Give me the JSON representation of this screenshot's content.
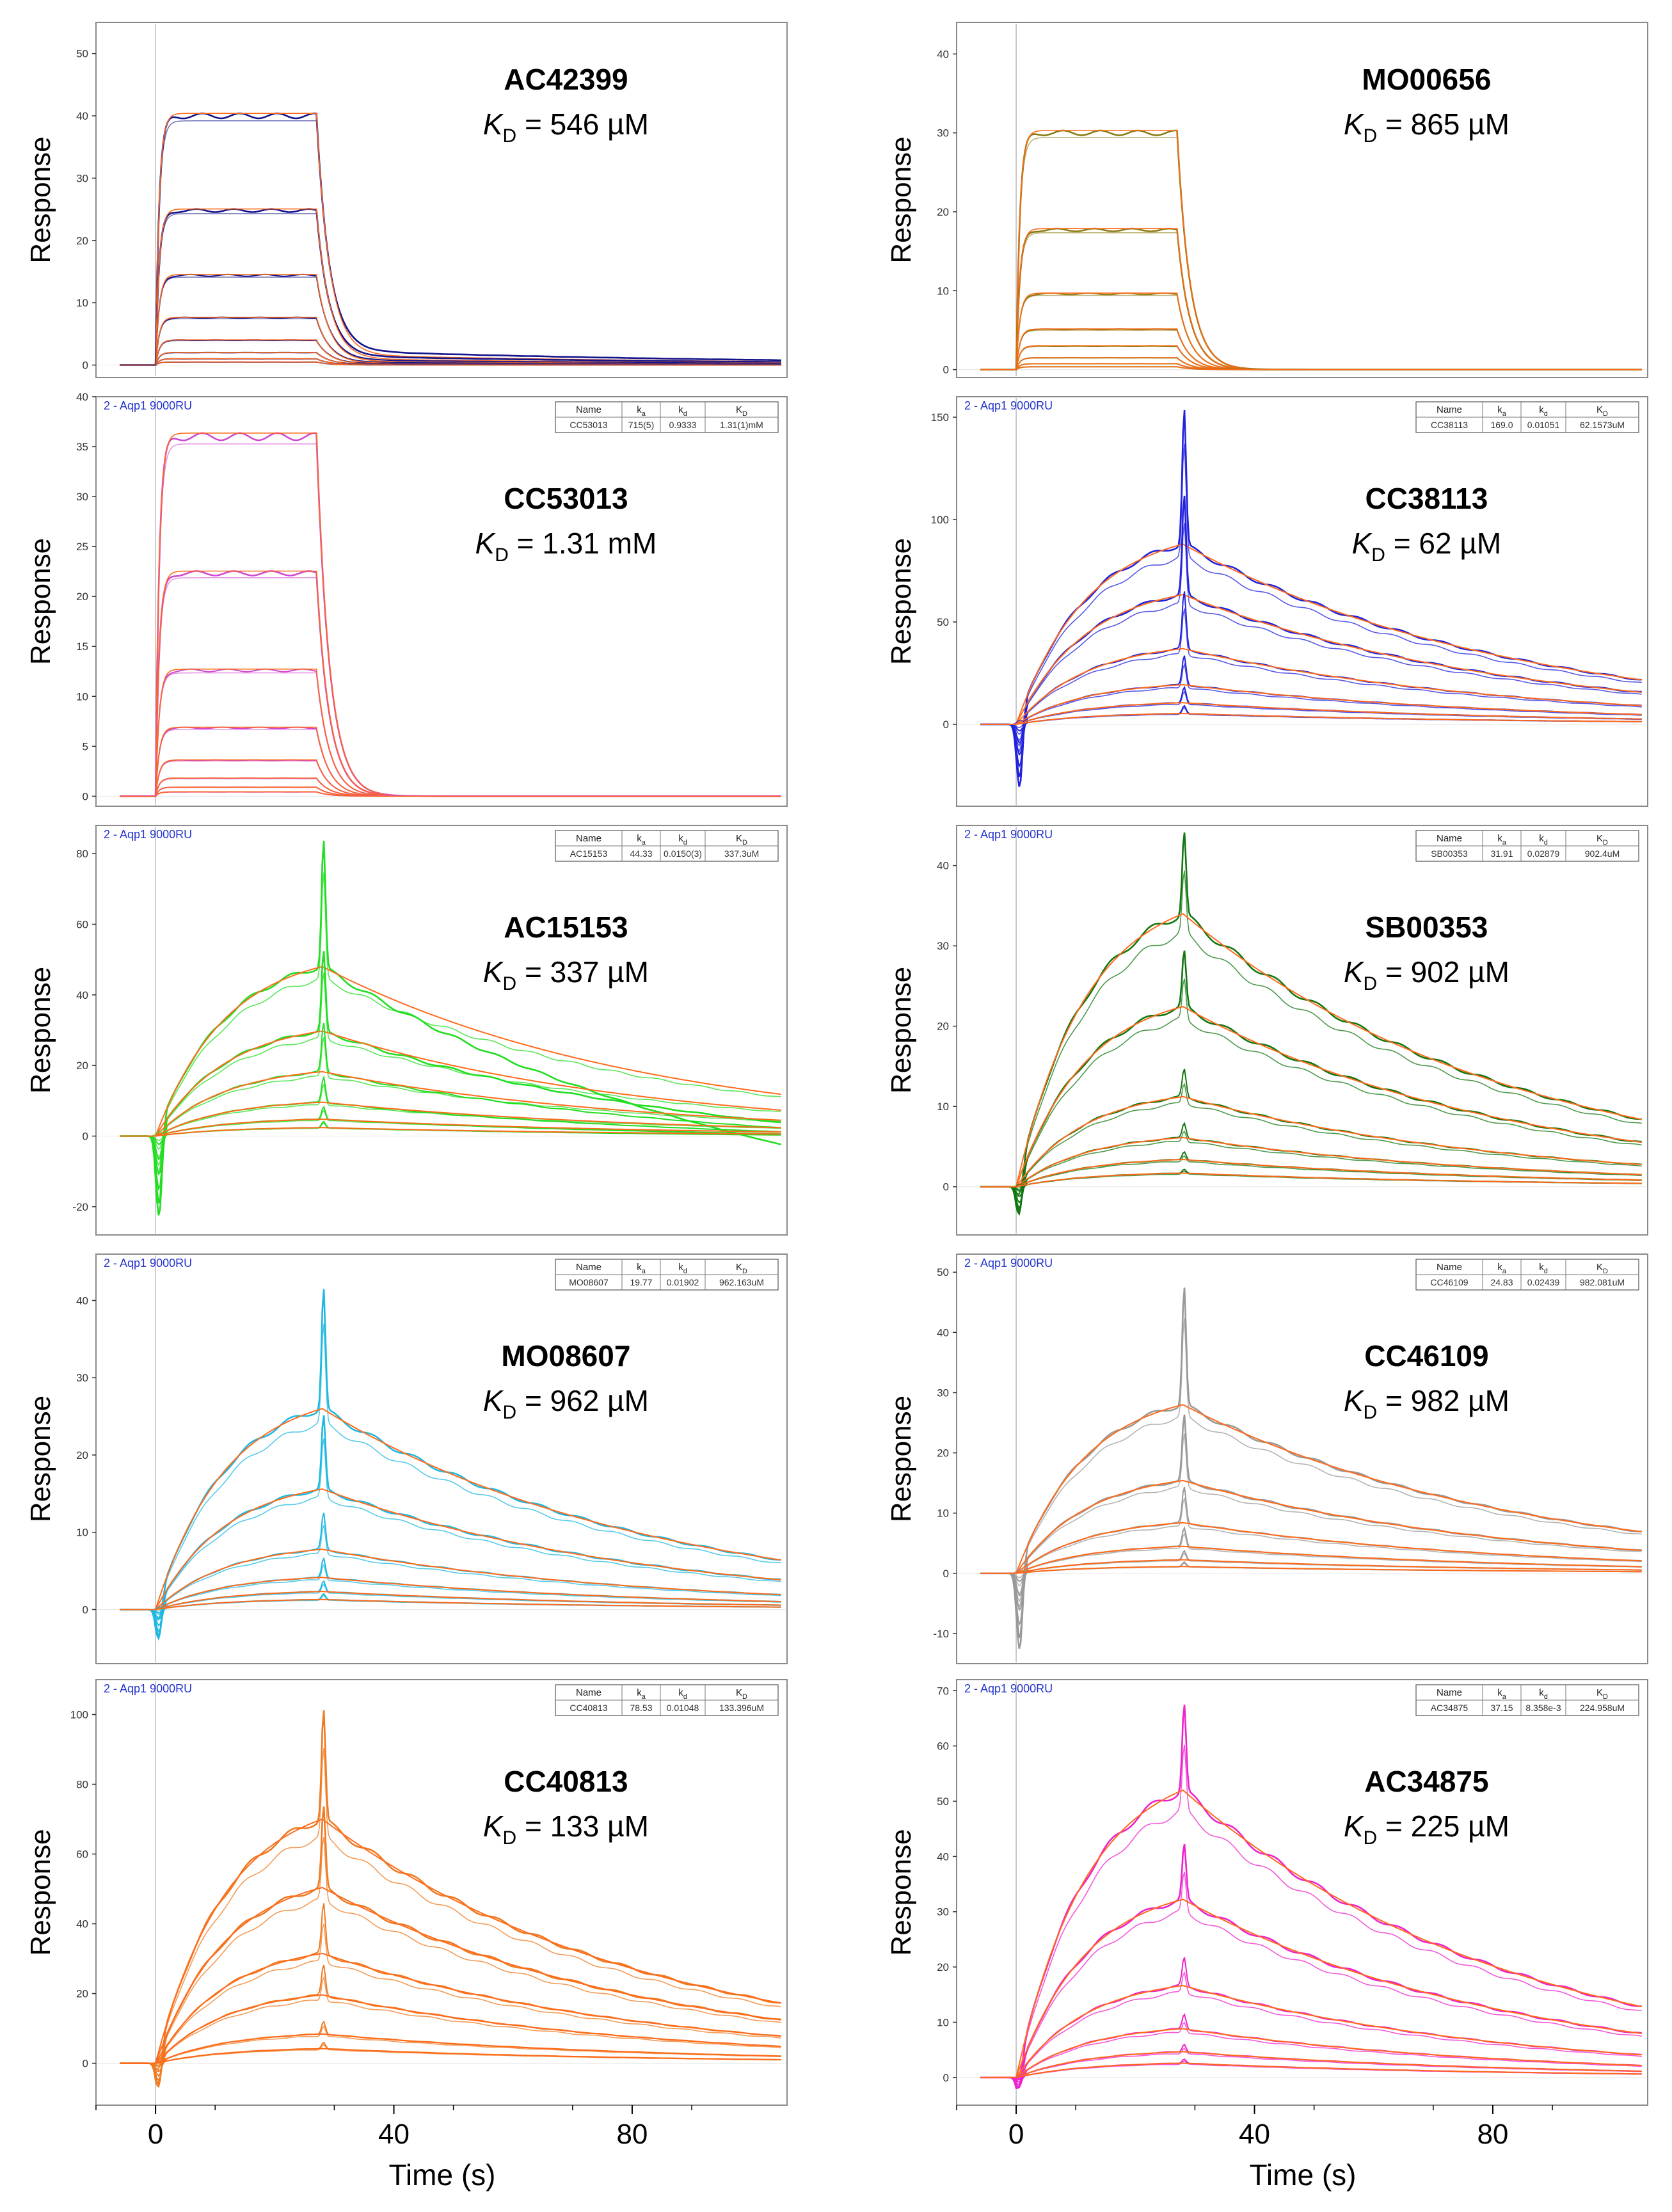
{
  "colors": {
    "fit": "#ff6a1a",
    "frame": "#8a8a8a",
    "axis_text": "#333333",
    "header_text": "#2233cc",
    "ref_line": "#bbbbbb"
  },
  "common": {
    "ylabel": "Response",
    "xlabel": "Time (s)",
    "x_ticks": [
      "0",
      "40",
      "80"
    ],
    "x_tick_values": [
      0,
      40,
      80
    ],
    "x_range": [
      -10,
      106
    ],
    "kd_symbol": "K",
    "kd_subscript": "D",
    "table_headers": [
      "Name",
      "k",
      "k",
      "K"
    ],
    "table_header_subs": [
      "",
      "a",
      "d",
      "D"
    ]
  },
  "chart_data": [
    {
      "type": "line",
      "compound": "AC42399",
      "kd_text": " = 546 µM",
      "profile": "fast",
      "ymax": 40,
      "ylim": [
        -2,
        55
      ],
      "yticks": [
        0,
        10,
        20,
        30,
        40,
        50
      ],
      "color": "#14148c",
      "levels": [
        1,
        0.62,
        0.36,
        0.19,
        0.1,
        0.05,
        0.025,
        0.012
      ],
      "dissociation_tail": 0.06,
      "header": "",
      "table": null
    },
    {
      "type": "line",
      "compound": "MO00656",
      "kd_text": " = 865 µM",
      "profile": "fast",
      "ymax": 30,
      "ylim": [
        -1,
        44
      ],
      "yticks": [
        0,
        10,
        20,
        30,
        40
      ],
      "color": "#8a7a10",
      "levels": [
        1,
        0.59,
        0.32,
        0.17,
        0.1,
        0.05,
        0.025,
        0.012
      ],
      "dissociation_tail": 0.0,
      "header": "",
      "table": null
    },
    {
      "type": "line",
      "compound": "CC53013",
      "kd_text": " = 1.31 mM",
      "profile": "fast",
      "ymax": 36,
      "ylim": [
        -1,
        40
      ],
      "yticks": [
        0,
        5,
        10,
        15,
        20,
        25,
        30,
        35,
        40
      ],
      "color": "#d048d0",
      "levels": [
        1,
        0.62,
        0.35,
        0.19,
        0.1,
        0.05,
        0.025,
        0.012
      ],
      "dissociation_tail": 0.0,
      "header": "2 - Aqp1 9000RU",
      "table": [
        "CC53013",
        "715(5)",
        "0.9333",
        "1.31(1)mM"
      ]
    },
    {
      "type": "line",
      "compound": "CC38113",
      "kd_text": " = 62 µM",
      "profile": "slow",
      "ymax": 88,
      "spike": 1.75,
      "neg": -35,
      "ylim": [
        -40,
        160
      ],
      "yticks": [
        0,
        50,
        100,
        150
      ],
      "color": "#2222dd",
      "levels": [
        1,
        0.72,
        0.42,
        0.22,
        0.12,
        0.06
      ],
      "dissociation_tail": 0.0,
      "header": "2 - Aqp1 9000RU",
      "table": [
        "CC38113",
        "169.0",
        "0.01051",
        "62.1573uM"
      ]
    },
    {
      "type": "line",
      "compound": "AC15153",
      "kd_text": " = 337 µM",
      "profile": "slow",
      "ymax": 48,
      "spike": 1.75,
      "neg": -25,
      "ylim": [
        -28,
        88
      ],
      "yticks": [
        -20,
        0,
        20,
        40,
        60,
        80
      ],
      "color": "#22dd22",
      "levels": [
        1,
        0.62,
        0.38,
        0.2,
        0.1,
        0.05
      ],
      "dissociation_tail": 0.3,
      "header": "2 - Aqp1 9000RU",
      "table": [
        "AC15153",
        "44.33",
        "0.0150(3)",
        "337.3uM"
      ]
    },
    {
      "type": "line",
      "compound": "SB00353",
      "kd_text": " = 902 µM",
      "profile": "slow",
      "ymax": 34,
      "spike": 1.3,
      "neg": -5,
      "ylim": [
        -6,
        45
      ],
      "yticks": [
        0,
        10,
        20,
        30,
        40
      ],
      "color": "#117711",
      "levels": [
        1,
        0.66,
        0.33,
        0.18,
        0.1,
        0.05
      ],
      "dissociation_tail": 0.0,
      "header": "2 - Aqp1 9000RU",
      "table": [
        "SB00353",
        "31.91",
        "0.02879",
        "902.4uM"
      ]
    },
    {
      "type": "line",
      "compound": "MO08607",
      "kd_text": " = 962 µM",
      "profile": "slow",
      "ymax": 26,
      "spike": 1.6,
      "neg": -5,
      "ylim": [
        -7,
        46
      ],
      "yticks": [
        0,
        10,
        20,
        30,
        40
      ],
      "color": "#1fb8e0",
      "levels": [
        1,
        0.6,
        0.3,
        0.16,
        0.09,
        0.05
      ],
      "dissociation_tail": 0.0,
      "header": "2 - Aqp1 9000RU",
      "table": [
        "MO08607",
        "19.77",
        "0.01902",
        "962.163uM"
      ]
    },
    {
      "type": "line",
      "compound": "CC46109",
      "kd_text": " = 982 µM",
      "profile": "slow",
      "ymax": 28,
      "spike": 1.7,
      "neg": -14,
      "ylim": [
        -15,
        53
      ],
      "yticks": [
        -10,
        0,
        10,
        20,
        30,
        40,
        50
      ],
      "color": "#999999",
      "levels": [
        1,
        0.55,
        0.3,
        0.16,
        0.08,
        0.04
      ],
      "dissociation_tail": 0.0,
      "header": "2 - Aqp1 9000RU",
      "table": [
        "CC46109",
        "24.83",
        "0.02439",
        "982.081uM"
      ]
    },
    {
      "type": "line",
      "compound": "CC40813",
      "kd_text": " = 133 µM",
      "profile": "slow",
      "ymax": 70,
      "spike": 1.45,
      "neg": -10,
      "ylim": [
        -12,
        110
      ],
      "yticks": [
        0,
        20,
        40,
        60,
        80,
        100
      ],
      "color": "#ee7b22",
      "levels": [
        1,
        0.72,
        0.45,
        0.28,
        0.12,
        0.06
      ],
      "dissociation_tail": 0.0,
      "header": "2 - Aqp1 9000RU",
      "table": [
        "CC40813",
        "78.53",
        "0.01048",
        "133.396uM"
      ]
    },
    {
      "type": "line",
      "compound": "AC34875",
      "kd_text": " = 225 µM",
      "profile": "slow",
      "ymax": 52,
      "spike": 1.3,
      "neg": -4,
      "ylim": [
        -5,
        72
      ],
      "yticks": [
        0,
        10,
        20,
        30,
        40,
        50,
        60,
        70
      ],
      "color": "#ee22cc",
      "levels": [
        1,
        0.62,
        0.32,
        0.17,
        0.09,
        0.05
      ],
      "dissociation_tail": 0.0,
      "header": "2 - Aqp1 9000RU",
      "table": [
        "AC34875",
        "37.15",
        "8.358e-3",
        "224.958uM"
      ]
    }
  ]
}
